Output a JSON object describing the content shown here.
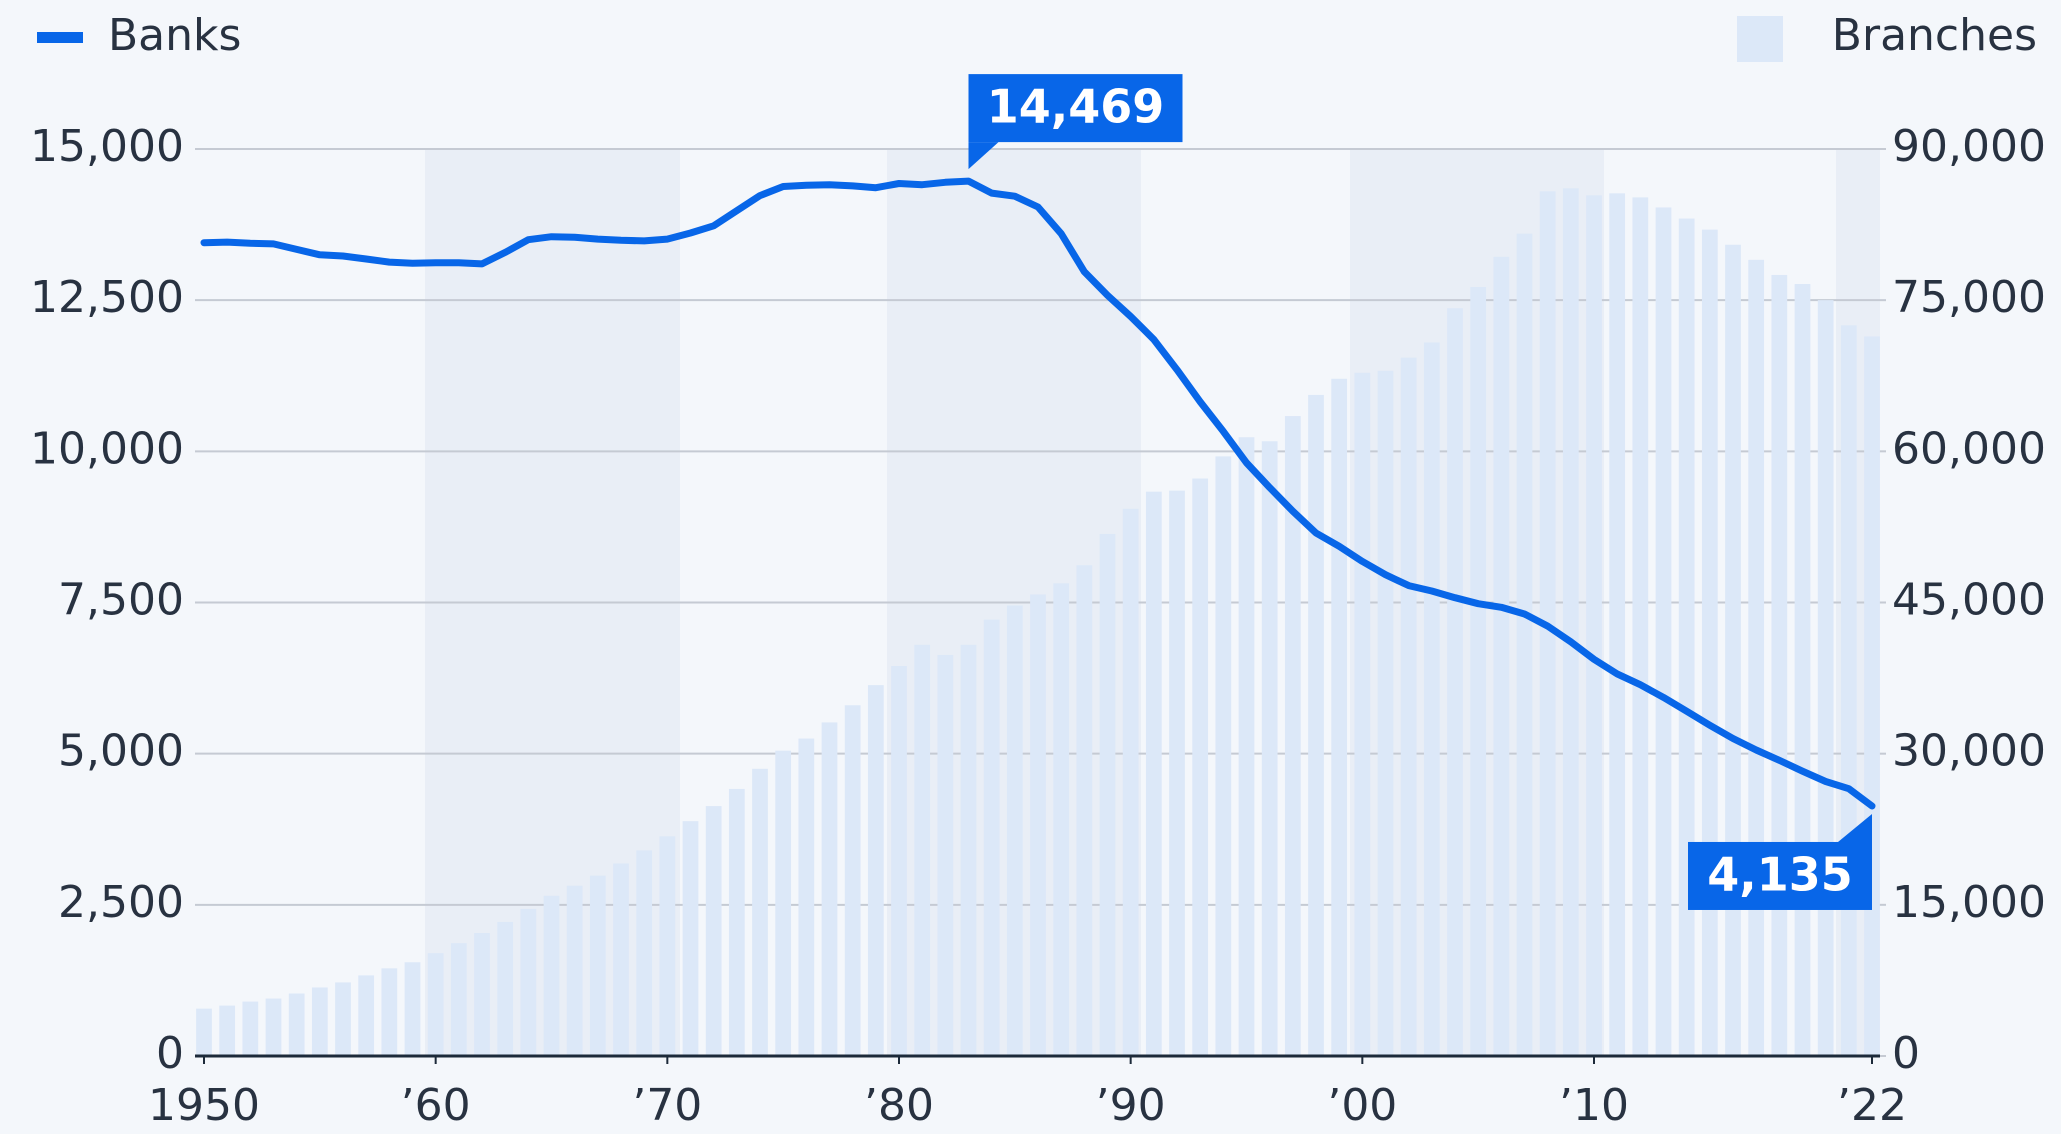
{
  "chart_data": {
    "type": "bar-line",
    "x": [
      1950,
      1951,
      1952,
      1953,
      1954,
      1955,
      1956,
      1957,
      1958,
      1959,
      1960,
      1961,
      1962,
      1963,
      1964,
      1965,
      1966,
      1967,
      1968,
      1969,
      1970,
      1971,
      1972,
      1973,
      1974,
      1975,
      1976,
      1977,
      1978,
      1979,
      1980,
      1981,
      1982,
      1983,
      1984,
      1985,
      1986,
      1987,
      1988,
      1989,
      1990,
      1991,
      1992,
      1993,
      1994,
      1995,
      1996,
      1997,
      1998,
      1999,
      2000,
      2001,
      2002,
      2003,
      2004,
      2005,
      2006,
      2007,
      2008,
      2009,
      2010,
      2011,
      2012,
      2013,
      2014,
      2015,
      2016,
      2017,
      2018,
      2019,
      2020,
      2021,
      2022
    ],
    "series": [
      {
        "name": "Banks",
        "type": "line",
        "color": "#0866e8",
        "values": [
          13450,
          13460,
          13440,
          13430,
          13340,
          13250,
          13230,
          13180,
          13130,
          13110,
          13120,
          13120,
          13100,
          13290,
          13500,
          13550,
          13540,
          13510,
          13490,
          13480,
          13510,
          13610,
          13730,
          13980,
          14230,
          14380,
          14400,
          14410,
          14390,
          14360,
          14430,
          14410,
          14450,
          14469,
          14270,
          14220,
          14040,
          13600,
          12970,
          12580,
          12230,
          11850,
          11350,
          10820,
          10330,
          9810,
          9400,
          9010,
          8650,
          8430,
          8180,
          7960,
          7780,
          7690,
          7580,
          7480,
          7420,
          7310,
          7110,
          6850,
          6560,
          6320,
          6140,
          5930,
          5700,
          5470,
          5250,
          5060,
          4890,
          4710,
          4540,
          4420,
          4135
        ],
        "value_labels": [
          null,
          null,
          null,
          null,
          null,
          null,
          null,
          null,
          null,
          null,
          null,
          null,
          null,
          null,
          null,
          null,
          null,
          null,
          null,
          null,
          null,
          null,
          null,
          null,
          null,
          null,
          null,
          null,
          null,
          null,
          null,
          null,
          null,
          "14,469",
          null,
          null,
          null,
          null,
          null,
          null,
          null,
          null,
          null,
          null,
          null,
          null,
          null,
          null,
          null,
          null,
          null,
          null,
          null,
          null,
          null,
          null,
          null,
          null,
          null,
          null,
          null,
          null,
          null,
          null,
          null,
          null,
          null,
          null,
          null,
          null,
          null,
          null,
          "4,135"
        ]
      },
      {
        "name": "Branches",
        "type": "bar",
        "axis": "y2",
        "color": "#dce8f8",
        "values": [
          4700,
          5000,
          5400,
          5700,
          6200,
          6800,
          7300,
          8000,
          8700,
          9300,
          10200,
          11200,
          12200,
          13300,
          14600,
          15900,
          16900,
          17900,
          19100,
          20400,
          21800,
          23300,
          24800,
          26500,
          28500,
          30300,
          31500,
          33100,
          34800,
          36800,
          38700,
          40800,
          39800,
          40800,
          43300,
          44700,
          45800,
          46900,
          48700,
          51800,
          54300,
          56000,
          56100,
          57300,
          59500,
          61400,
          61000,
          63500,
          65600,
          67200,
          67800,
          68000,
          69300,
          70800,
          74200,
          76300,
          79300,
          81600,
          85800,
          86100,
          85400,
          85600,
          85200,
          84200,
          83100,
          82000,
          80500,
          79000,
          77500,
          76600,
          75000,
          72500,
          71400
        ]
      }
    ],
    "xlim": [
      1950,
      2022
    ],
    "xticks": [
      1950,
      {
        "value": 1960,
        "label": "’60"
      },
      {
        "value": 1970,
        "label": "’70"
      },
      {
        "value": 1980,
        "label": "’80"
      },
      {
        "value": 1990,
        "label": "’90"
      },
      {
        "value": 2000,
        "label": "’00"
      },
      {
        "value": 2010,
        "label": "’10"
      },
      {
        "value": 2022,
        "label": "’22"
      }
    ],
    "ylim": [
      0,
      15000
    ],
    "yticks": [
      0,
      {
        "value": 2500,
        "label": "2,500"
      },
      {
        "value": 5000,
        "label": "5,000"
      },
      {
        "value": 7500,
        "label": "7,500"
      },
      {
        "value": 10000,
        "label": "10,000"
      },
      {
        "value": 12500,
        "label": "12,500"
      },
      {
        "value": 15000,
        "label": "15,000"
      }
    ],
    "y2lim": [
      0,
      90000
    ],
    "y2ticks": [
      0,
      {
        "value": 15000,
        "label": "15,000"
      },
      {
        "value": 30000,
        "label": "30,000"
      },
      {
        "value": 45000,
        "label": "45,000"
      },
      {
        "value": 60000,
        "label": "60,000"
      },
      {
        "value": 75000,
        "label": "75,000"
      },
      {
        "value": 90000,
        "label": "90,000"
      }
    ],
    "grid": true
  }
}
